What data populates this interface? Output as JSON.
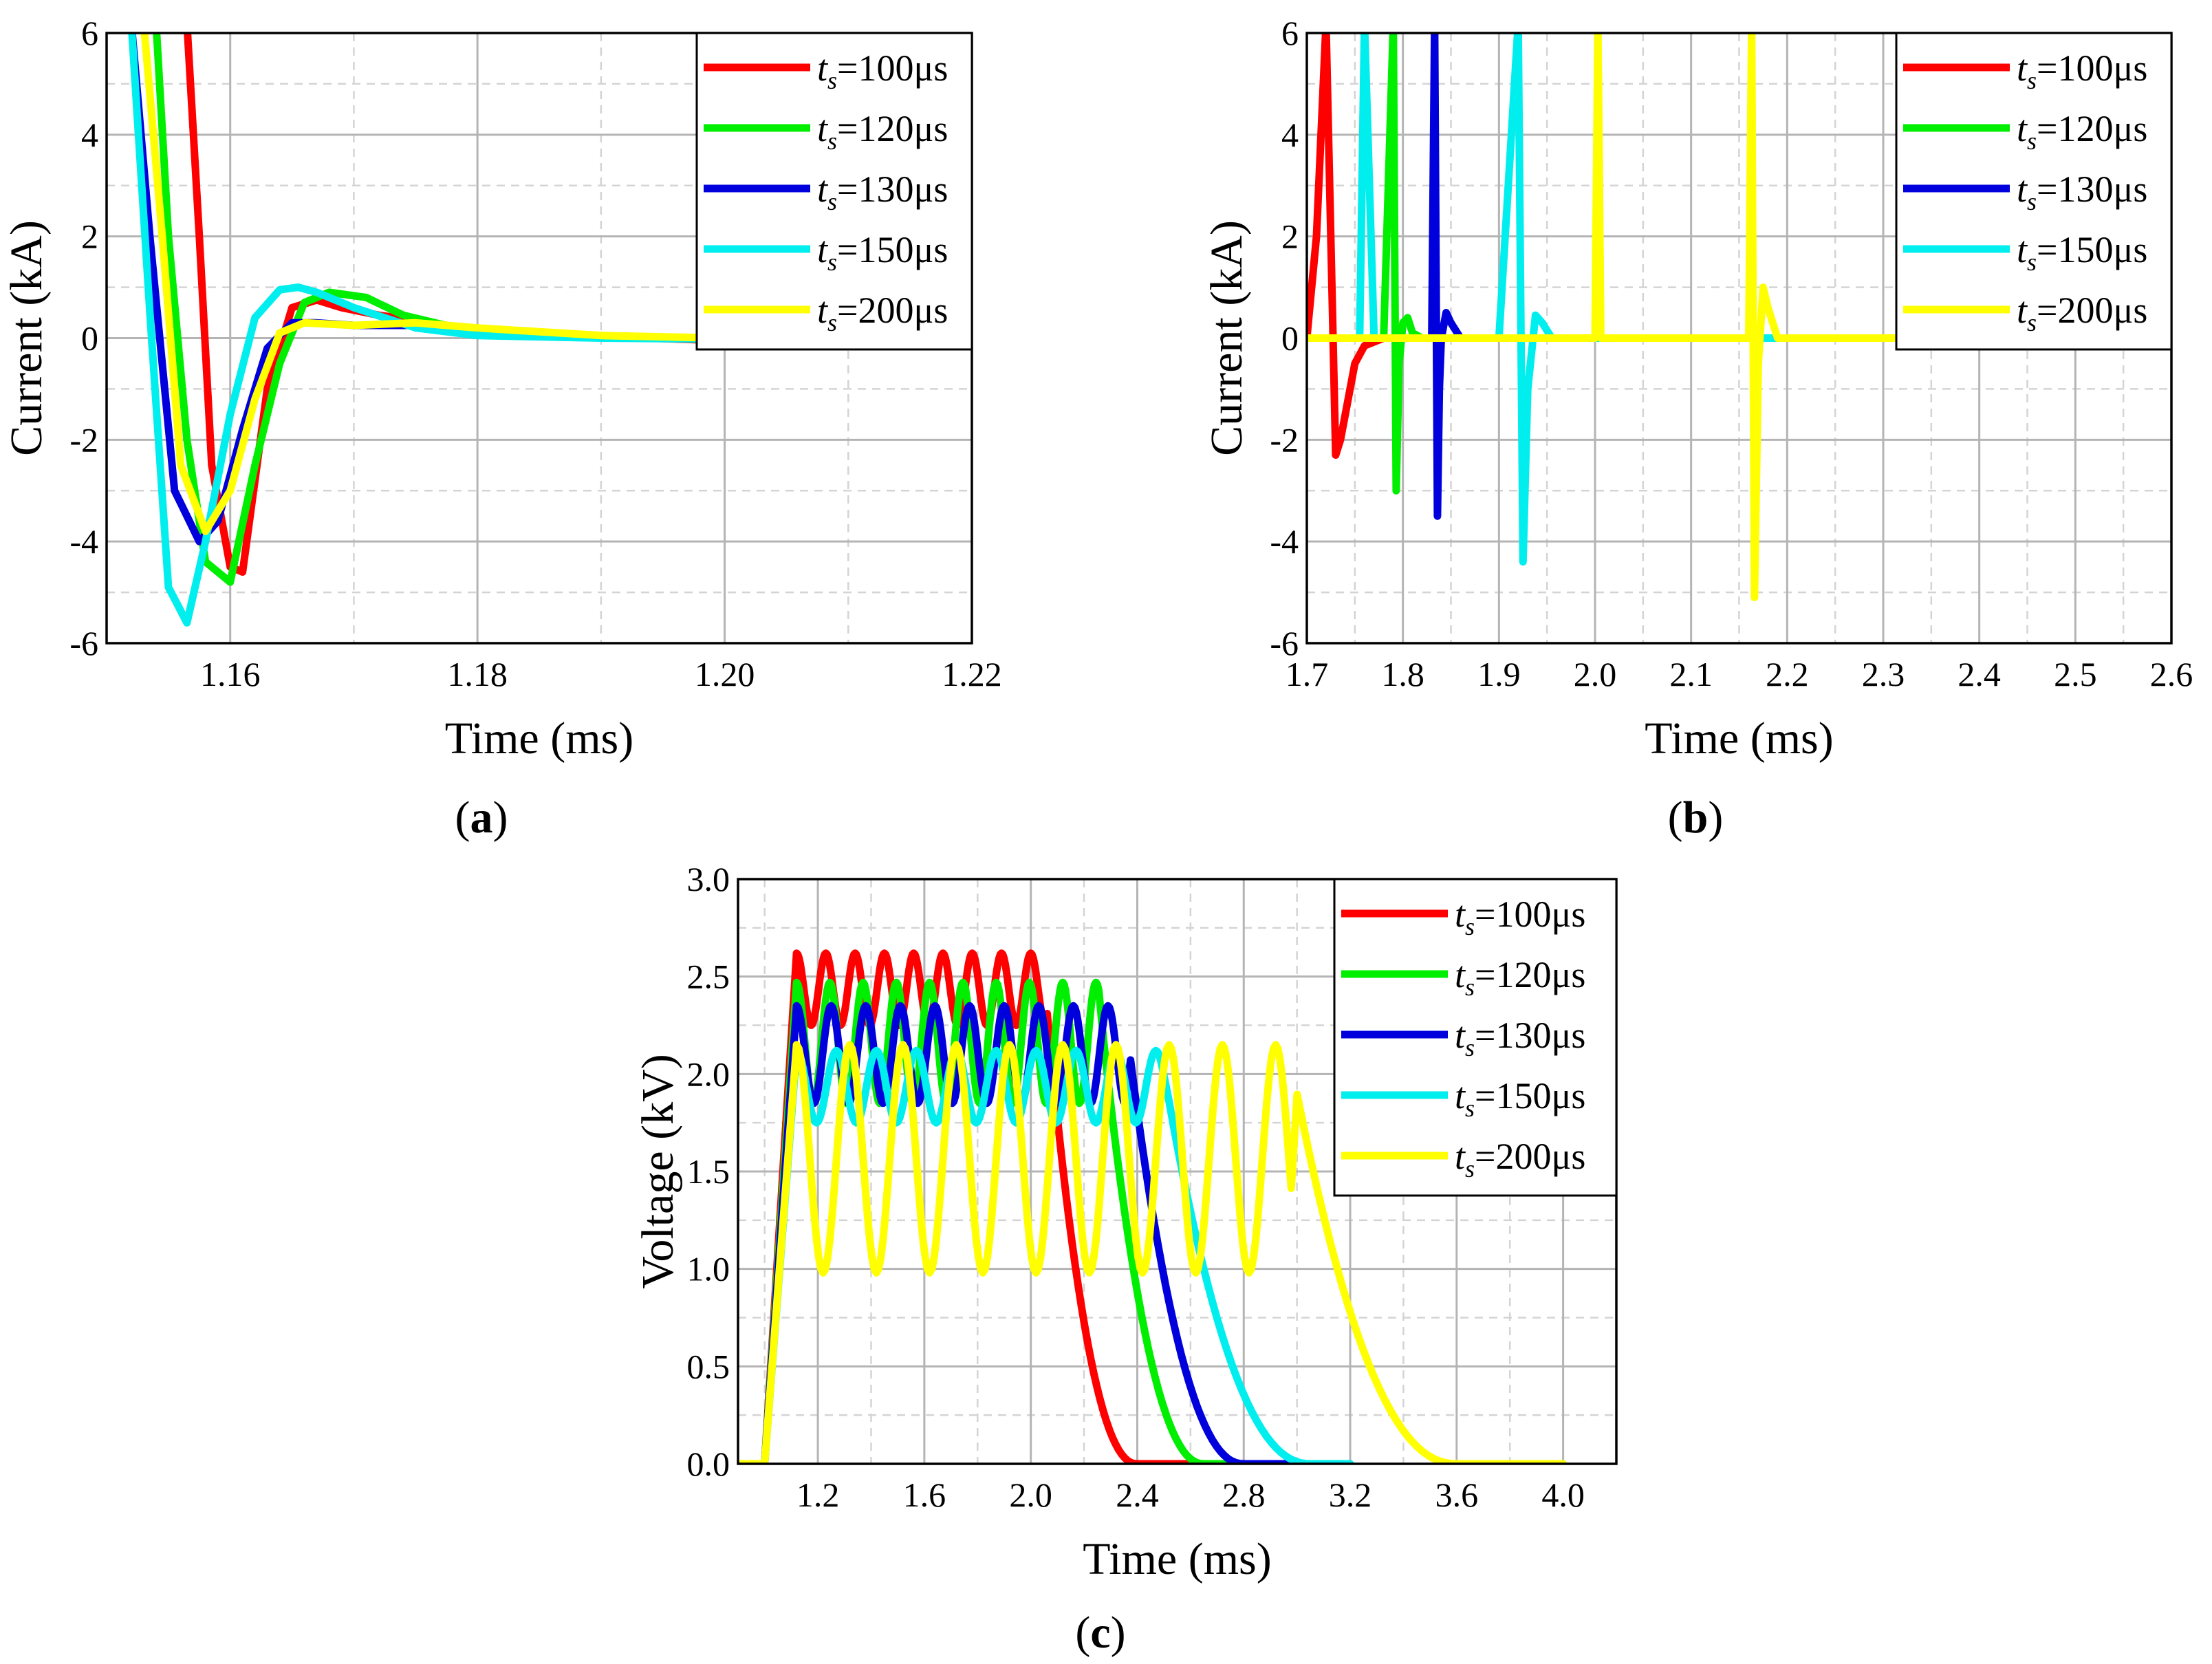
{
  "chart_data": [
    {
      "panel": "(a)",
      "panel_letter": "a",
      "type": "line",
      "xlabel": "Time (ms)",
      "ylabel": "Current (kA)",
      "xlim": [
        1.15,
        1.22
      ],
      "ylim": [
        -6,
        6
      ],
      "x_major_ticks": [
        1.16,
        1.18,
        1.2,
        1.22
      ],
      "x_tick_labels": [
        "1.16",
        "1.18",
        "1.20",
        "1.22"
      ],
      "y_major_ticks": [
        -6,
        -4,
        -2,
        0,
        2,
        4,
        6
      ],
      "y_tick_labels": [
        "-6",
        "-4",
        "-2",
        "0",
        "2",
        "4",
        "6"
      ],
      "grid": true,
      "legend_position": "top-right",
      "series": [
        {
          "name": "ts=100μs",
          "sub": "s",
          "label": "=100μs",
          "color": "#ff0000",
          "x": [
            1.1565,
            1.1575,
            1.1585,
            1.16,
            1.161,
            1.163,
            1.165,
            1.167,
            1.169,
            1.172,
            1.175,
            1.18,
            1.19,
            1.2
          ],
          "y": [
            6.2,
            2.0,
            -2.5,
            -4.5,
            -4.6,
            -1.0,
            0.6,
            0.75,
            0.6,
            0.45,
            0.35,
            0.15,
            0.03,
            -0.05
          ]
        },
        {
          "name": "ts=120μs",
          "sub": "s",
          "label": "=120μs",
          "color": "#00ee00",
          "x": [
            1.154,
            1.155,
            1.1565,
            1.158,
            1.16,
            1.162,
            1.164,
            1.166,
            1.168,
            1.171,
            1.174,
            1.18,
            1.19,
            1.2
          ],
          "y": [
            6.2,
            2.0,
            -2.0,
            -4.4,
            -4.8,
            -2.5,
            -0.5,
            0.7,
            0.9,
            0.8,
            0.45,
            0.1,
            0.02,
            -0.03
          ]
        },
        {
          "name": "ts=130μs",
          "sub": "s",
          "label": "=130μs",
          "color": "#0000dd",
          "x": [
            1.152,
            1.1535,
            1.1555,
            1.1575,
            1.159,
            1.161,
            1.163,
            1.165,
            1.167,
            1.17,
            1.175,
            1.18,
            1.19,
            1.2
          ],
          "y": [
            6.2,
            2.0,
            -3.0,
            -4.0,
            -3.6,
            -1.8,
            -0.2,
            0.3,
            0.3,
            0.25,
            0.25,
            0.1,
            0.02,
            -0.02
          ]
        },
        {
          "name": "ts=150μs",
          "sub": "s",
          "label": "=150μs",
          "color": "#00eeee",
          "x": [
            1.152,
            1.1535,
            1.155,
            1.1565,
            1.158,
            1.16,
            1.162,
            1.164,
            1.1655,
            1.167,
            1.17,
            1.175,
            1.18,
            1.19,
            1.2
          ],
          "y": [
            6.2,
            0.5,
            -4.9,
            -5.6,
            -4.0,
            -1.5,
            0.4,
            0.95,
            1.0,
            0.9,
            0.6,
            0.2,
            0.05,
            0.0,
            -0.02
          ]
        },
        {
          "name": "ts=200μs",
          "sub": "s",
          "label": "=200μs",
          "color": "#ffff00",
          "x": [
            1.153,
            1.1545,
            1.156,
            1.158,
            1.16,
            1.162,
            1.164,
            1.166,
            1.17,
            1.175,
            1.18,
            1.19,
            1.2
          ],
          "y": [
            6.2,
            2.0,
            -2.5,
            -3.8,
            -3.0,
            -1.2,
            0.1,
            0.3,
            0.25,
            0.3,
            0.2,
            0.05,
            0.0
          ]
        }
      ]
    },
    {
      "panel": "(b)",
      "panel_letter": "b",
      "type": "line",
      "xlabel": "Time (ms)",
      "ylabel": "Current (kA)",
      "xlim": [
        1.7,
        2.6
      ],
      "ylim": [
        -6,
        6
      ],
      "x_major_ticks": [
        1.7,
        1.8,
        1.9,
        2.0,
        2.1,
        2.2,
        2.3,
        2.4,
        2.5,
        2.6
      ],
      "x_tick_labels": [
        "1.7",
        "1.8",
        "1.9",
        "2.0",
        "2.1",
        "2.2",
        "2.3",
        "2.4",
        "2.5",
        "2.6"
      ],
      "y_major_ticks": [
        -6,
        -4,
        -2,
        0,
        2,
        4,
        6
      ],
      "y_tick_labels": [
        "-6",
        "-4",
        "-2",
        "0",
        "2",
        "4",
        "6"
      ],
      "grid": true,
      "legend_position": "top-right",
      "series": [
        {
          "name": "ts=100μs",
          "sub": "s",
          "label": "=100μs",
          "color": "#ff0000",
          "x": [
            1.7,
            1.71,
            1.72,
            1.73,
            1.735,
            1.74,
            1.75,
            1.76,
            1.78,
            1.8
          ],
          "y": [
            0,
            2.0,
            6.2,
            -2.3,
            -2.0,
            -1.5,
            -0.5,
            -0.15,
            0,
            0
          ]
        },
        {
          "name": "ts=120μs",
          "sub": "s",
          "label": "=120μs",
          "color": "#00ee00",
          "x": [
            1.7,
            1.78,
            1.79,
            1.793,
            1.796,
            1.8,
            1.805,
            1.81,
            1.82,
            1.9
          ],
          "y": [
            0,
            0,
            6.2,
            -3.0,
            -0.5,
            0.3,
            0.4,
            0.1,
            0,
            0
          ]
        },
        {
          "name": "ts=130μs",
          "sub": "s",
          "label": "=130μs",
          "color": "#0000dd",
          "x": [
            1.7,
            1.83,
            1.833,
            1.836,
            1.838,
            1.84,
            1.845,
            1.85,
            1.86,
            2.0
          ],
          "y": [
            0,
            0,
            6.2,
            -3.5,
            -1.0,
            0.0,
            0.5,
            0.3,
            0,
            0
          ]
        },
        {
          "name": "ts=150μs",
          "sub": "s",
          "label": "=150μs",
          "color": "#00eeee",
          "x": [
            1.7,
            1.745,
            1.755,
            1.76,
            1.77,
            1.9,
            1.92,
            1.925,
            1.93,
            1.938,
            1.945,
            1.955,
            2.0,
            2.6
          ],
          "y": [
            0,
            0,
            0,
            6.2,
            0,
            0,
            6.2,
            -4.4,
            -1.0,
            0.45,
            0.3,
            0,
            0,
            0
          ]
        },
        {
          "name": "ts=200μs",
          "sub": "s",
          "label": "=200μs",
          "color": "#ffff00",
          "x": [
            1.7,
            1.995,
            2.0,
            2.003,
            2.006,
            2.16,
            2.163,
            2.166,
            2.17,
            2.175,
            2.18,
            2.19,
            2.2,
            2.6
          ],
          "y": [
            0,
            0,
            0,
            6.2,
            0,
            0,
            6.2,
            -5.1,
            -0.5,
            1.0,
            0.6,
            0,
            0,
            0
          ]
        }
      ]
    },
    {
      "panel": "(c)",
      "panel_letter": "c",
      "type": "line",
      "xlabel": "Time (ms)",
      "ylabel": "Voltage (kV)",
      "xlim": [
        0.9,
        4.2
      ],
      "ylim": [
        0.0,
        3.0
      ],
      "x_major_ticks": [
        1.2,
        1.6,
        2.0,
        2.4,
        2.8,
        3.2,
        3.6,
        4.0
      ],
      "x_tick_labels": [
        "1.2",
        "1.6",
        "2.0",
        "2.4",
        "2.8",
        "3.2",
        "3.6",
        "4.0"
      ],
      "y_major_ticks": [
        0,
        0.5,
        1.0,
        1.5,
        2.0,
        2.5,
        3.0
      ],
      "y_tick_labels": [
        "0.0",
        "0.5",
        "1.0",
        "1.5",
        "2.0",
        "2.5",
        "3.0"
      ],
      "grid": true,
      "legend_position": "top-right",
      "series": [
        {
          "name": "ts=100μs",
          "sub": "s",
          "label": "=100μs",
          "color": "#ff0000",
          "pulse_start": 1.0,
          "pulse_period": 0.11,
          "pulse_peak": 2.62,
          "pulse_min": 2.25,
          "pulse_end": 2.05,
          "decay_end": 2.4,
          "tail_end": 3.0,
          "plateau_after": 0.07
        },
        {
          "name": "ts=120μs",
          "sub": "s",
          "label": "=120μs",
          "color": "#00ee00",
          "pulse_start": 1.0,
          "pulse_period": 0.125,
          "pulse_peak": 2.47,
          "pulse_min": 1.85,
          "pulse_end": 2.26,
          "decay_end": 2.65,
          "tail_end": 3.0,
          "plateau_after": 0.02
        },
        {
          "name": "ts=130μs",
          "sub": "s",
          "label": "=130μs",
          "color": "#0000dd",
          "pulse_start": 1.0,
          "pulse_period": 0.13,
          "pulse_peak": 2.35,
          "pulse_min": 1.85,
          "pulse_end": 2.36,
          "decay_end": 2.8,
          "tail_end": 3.0,
          "plateau_after": 0.01
        },
        {
          "name": "ts=150μs",
          "sub": "s",
          "label": "=150μs",
          "color": "#00eeee",
          "pulse_start": 1.0,
          "pulse_period": 0.15,
          "pulse_peak": 2.12,
          "pulse_min": 1.75,
          "pulse_end": 2.5,
          "decay_end": 3.05,
          "tail_end": 3.2,
          "plateau_after": 0.0
        },
        {
          "name": "ts=200μs",
          "sub": "s",
          "label": "=200μs",
          "color": "#ffff00",
          "pulse_start": 1.0,
          "pulse_period": 0.2,
          "pulse_peak": 2.15,
          "pulse_min": 0.98,
          "pulse_end": 2.98,
          "decay_end": 3.6,
          "tail_end": 4.0,
          "plateau_after": 0.0
        }
      ]
    }
  ]
}
